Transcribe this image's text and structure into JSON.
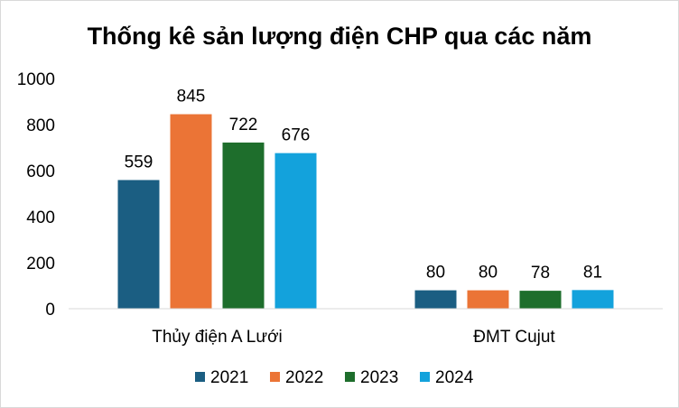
{
  "chart_data": {
    "type": "bar",
    "title": "Thống kê sản lượng điện CHP qua các năm",
    "xlabel": "",
    "ylabel": "",
    "categories": [
      "Thủy điện A Lưới",
      "ĐMT Cujut"
    ],
    "series": [
      {
        "name": "2021",
        "values": [
          559,
          80
        ],
        "color": "#1b5e82"
      },
      {
        "name": "2022",
        "values": [
          845,
          80
        ],
        "color": "#eb7436"
      },
      {
        "name": "2023",
        "values": [
          722,
          78
        ],
        "color": "#1e6e2c"
      },
      {
        "name": "2024",
        "values": [
          676,
          81
        ],
        "color": "#13a2dc"
      }
    ],
    "ylim": [
      0,
      1000
    ],
    "yticks": [
      0,
      200,
      400,
      600,
      800,
      1000
    ],
    "grid": false,
    "legend": "bottom"
  }
}
